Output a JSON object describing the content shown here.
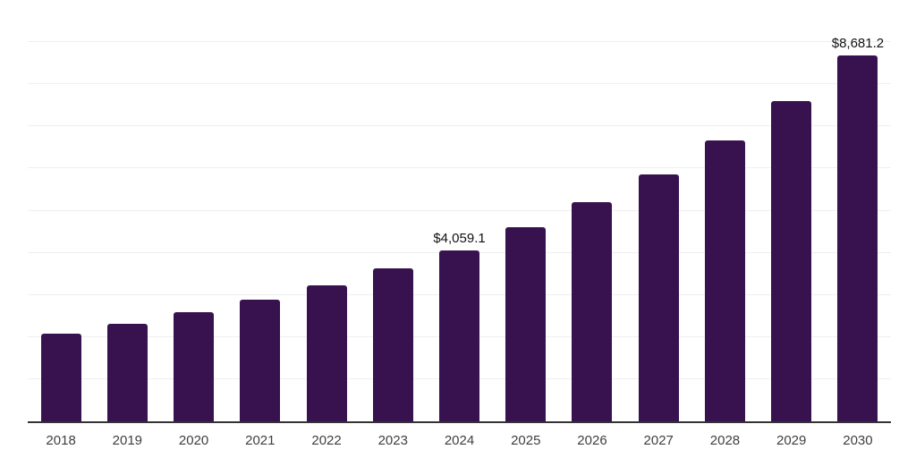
{
  "chart_data": {
    "type": "bar",
    "title": "",
    "xlabel": "",
    "ylabel": "",
    "categories": [
      "2018",
      "2019",
      "2020",
      "2021",
      "2022",
      "2023",
      "2024",
      "2025",
      "2026",
      "2027",
      "2028",
      "2029",
      "2030"
    ],
    "values": [
      2075,
      2320,
      2580,
      2880,
      3222,
      3628,
      4059.1,
      4605,
      5195,
      5862,
      6668,
      7602,
      8681.2
    ],
    "point_labels": [
      "",
      "",
      "",
      "",
      "",
      "",
      "$4,059.1",
      "",
      "",
      "",
      "",
      "",
      "$8,681.2"
    ],
    "ylim": [
      0,
      10000
    ],
    "gridline_interval": 1000,
    "grid": true,
    "legend_position": "none",
    "colors": {
      "bar": "#38124E",
      "axis_line": "#333333",
      "gridline": "#efefef",
      "tick_label": "#3f3f3f",
      "data_label": "#111111",
      "background": "#ffffff"
    }
  }
}
